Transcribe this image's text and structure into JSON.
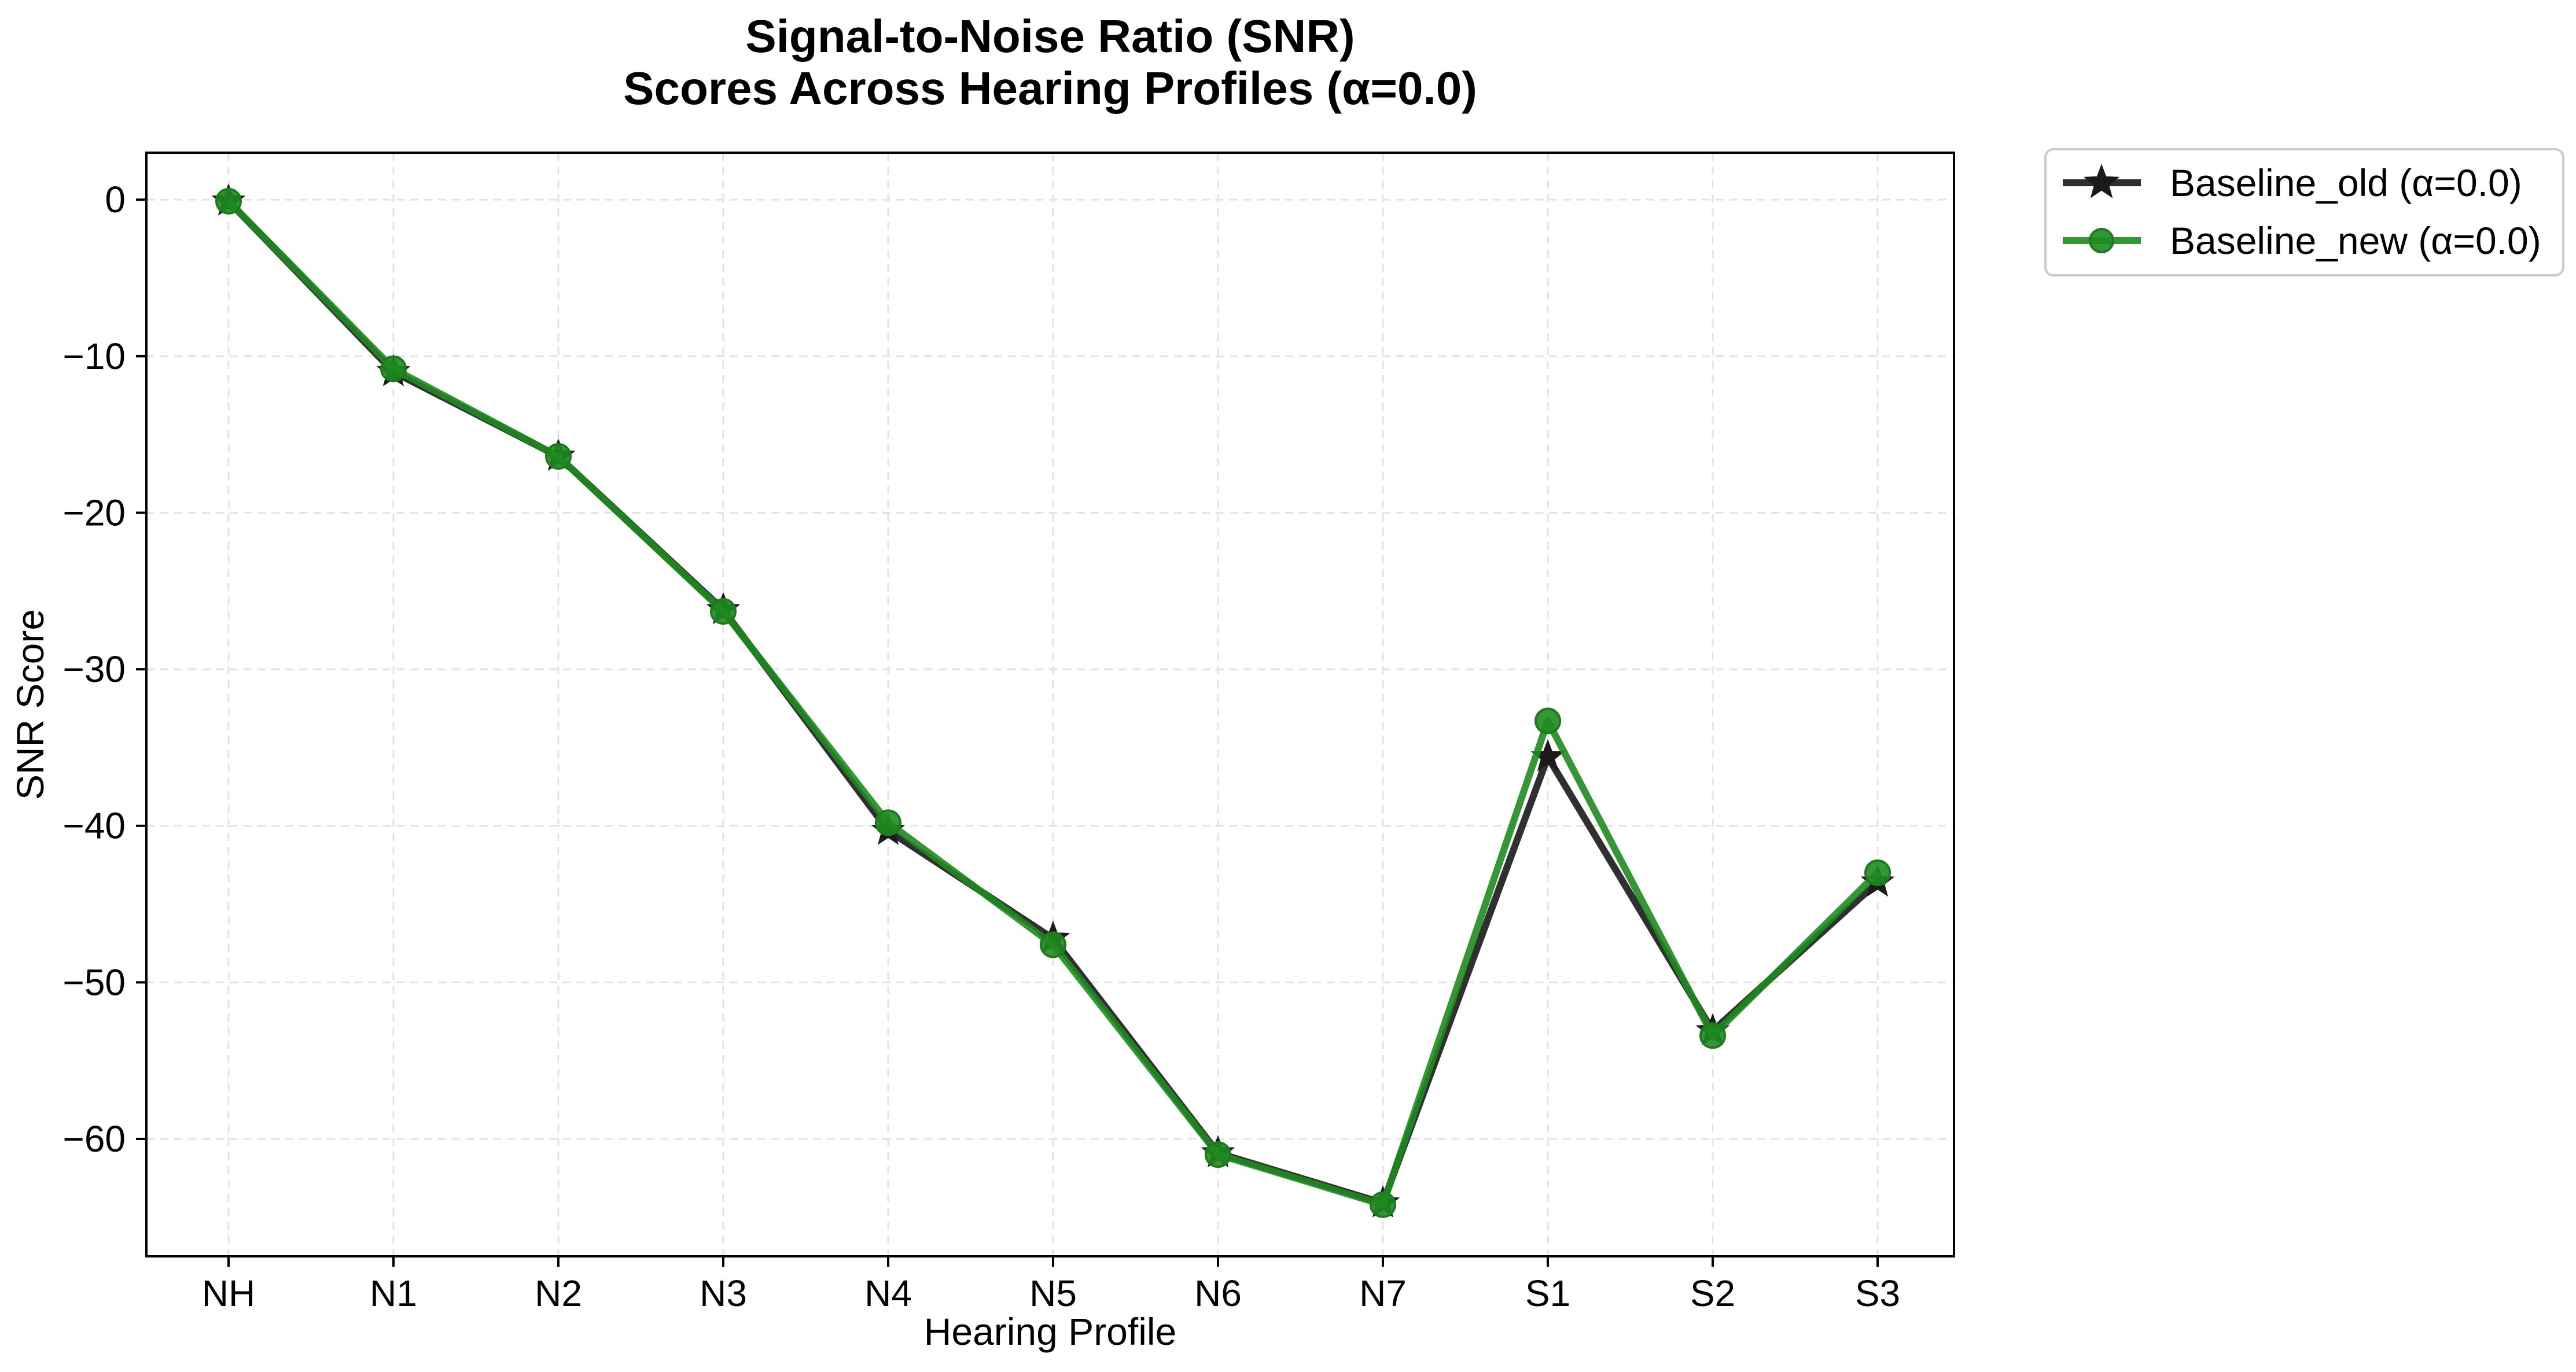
{
  "chart_data": {
    "type": "line",
    "title_lines": [
      "Signal-to-Noise Ratio (SNR)",
      "Scores Across Hearing Profiles (α=0.0)"
    ],
    "xlabel": "Hearing Profile",
    "ylabel": "SNR Score",
    "categories": [
      "NH",
      "N1",
      "N2",
      "N3",
      "N4",
      "N5",
      "N6",
      "N7",
      "S1",
      "S2",
      "S3"
    ],
    "ylim": [
      -67.5,
      3
    ],
    "yticks": [
      0,
      -10,
      -20,
      -30,
      -40,
      -50,
      -60
    ],
    "ytick_labels": [
      "0",
      "−10",
      "−20",
      "−30",
      "−40",
      "−50",
      "−60"
    ],
    "grid": true,
    "legend_position": "outside-top-right",
    "series": [
      {
        "name": "Baseline_old (α=0.0)",
        "color": "#1a1a1a",
        "marker": "star",
        "values": [
          -0.1,
          -11.0,
          -16.4,
          -26.2,
          -40.3,
          -47.2,
          -60.9,
          -64.1,
          -35.6,
          -53.1,
          -43.6
        ]
      },
      {
        "name": "Baseline_new (α=0.0)",
        "color": "#1f8b1f",
        "marker": "circle",
        "values": [
          -0.1,
          -10.8,
          -16.4,
          -26.3,
          -39.8,
          -47.6,
          -61.0,
          -64.2,
          -33.3,
          -53.4,
          -43.0
        ]
      }
    ]
  }
}
